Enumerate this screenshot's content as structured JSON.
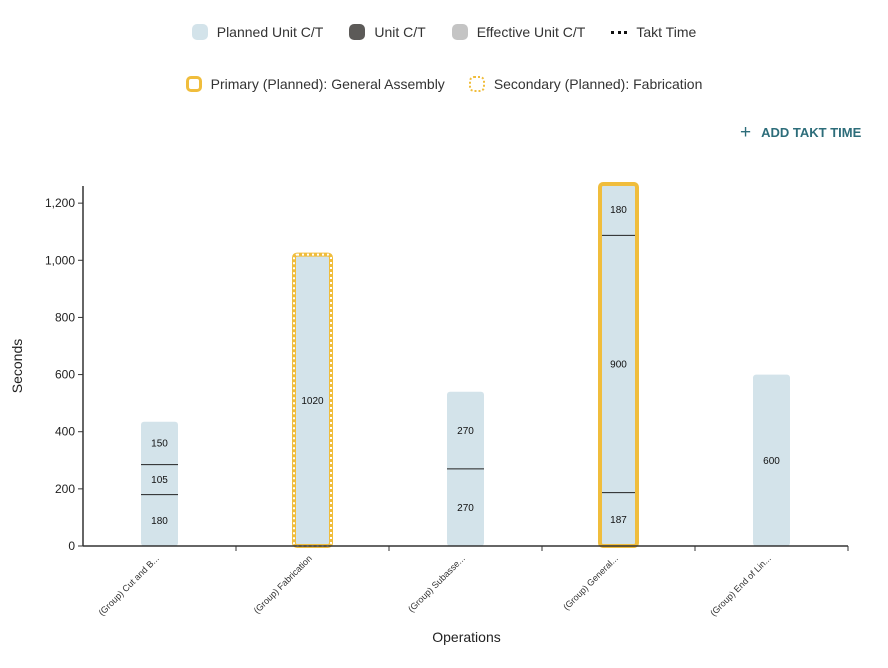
{
  "legend": {
    "items": [
      {
        "label": "Planned Unit C/T",
        "icon": "planned-swatch"
      },
      {
        "label": "Unit C/T",
        "icon": "unit-swatch"
      },
      {
        "label": "Effective Unit C/T",
        "icon": "effective-swatch"
      },
      {
        "label": "Takt Time",
        "icon": "takt-dotted-line"
      }
    ],
    "highlights": [
      {
        "label": "Primary (Planned): General Assembly",
        "icon": "primary-outline-swatch"
      },
      {
        "label": "Secondary (Planned): Fabrication",
        "icon": "secondary-dotted-outline-swatch"
      }
    ]
  },
  "actions": {
    "add_takt_label": "ADD TAKT TIME",
    "add_takt_icon": "plus-icon"
  },
  "colors": {
    "planned": "#d3e3ea",
    "unit": "#5c5a58",
    "effective": "#c4c4c4",
    "highlight": "#f0bd3c",
    "action": "#2d6d7a"
  },
  "chart_data": {
    "type": "bar",
    "stacked": true,
    "xlabel": "Operations",
    "ylabel": "Seconds",
    "ylim": [
      0,
      1260
    ],
    "yticks": [
      0,
      200,
      400,
      600,
      800,
      1000,
      1200
    ],
    "ytick_labels": [
      "0",
      "200",
      "400",
      "600",
      "800",
      "1,000",
      "1,200"
    ],
    "categories": [
      "(Group) Cut and B...",
      "(Group) Fabrication",
      "(Group) Subasse...",
      "(Group) General...",
      "(Group) End of Lin..."
    ],
    "series_name": "Planned Unit C/T",
    "stacks": [
      {
        "segments": [
          180,
          105,
          150
        ],
        "highlight": "none"
      },
      {
        "segments": [
          1020
        ],
        "highlight": "secondary"
      },
      {
        "segments": [
          270,
          270
        ],
        "highlight": "none"
      },
      {
        "segments": [
          187,
          900,
          180
        ],
        "highlight": "primary"
      },
      {
        "segments": [
          600
        ],
        "highlight": "none"
      }
    ]
  }
}
